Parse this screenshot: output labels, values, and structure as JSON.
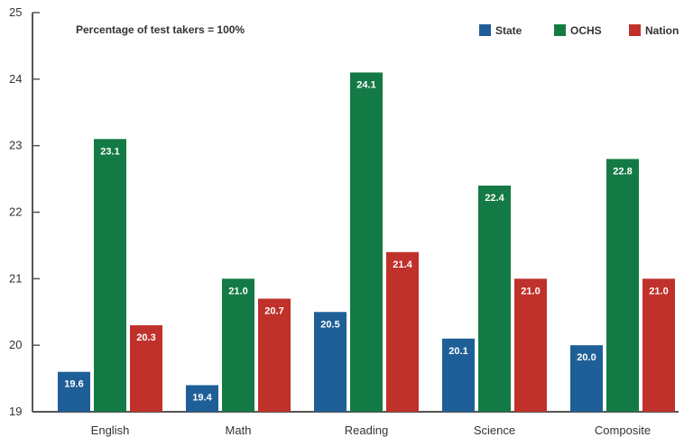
{
  "chart_data": {
    "type": "bar",
    "annotation": "Percentage of test takers = 100%",
    "categories": [
      "English",
      "Math",
      "Reading",
      "Science",
      "Composite"
    ],
    "series": [
      {
        "name": "State",
        "color": "#1f5f97",
        "values": [
          19.6,
          19.4,
          20.5,
          20.1,
          20.0
        ],
        "labels": [
          "19.6",
          "19.4",
          "20.5",
          "20.1",
          "20.0"
        ]
      },
      {
        "name": "OCHS",
        "color": "#147a45",
        "values": [
          23.1,
          21.0,
          24.1,
          22.4,
          22.8
        ],
        "labels": [
          "23.1",
          "21.0",
          "24.1",
          "22.4",
          "22.8"
        ]
      },
      {
        "name": "Nation",
        "color": "#c0312b",
        "values": [
          20.3,
          20.7,
          21.4,
          21.0,
          21.0
        ],
        "labels": [
          "20.3",
          "20.7",
          "21.4",
          "21.0",
          "21.0"
        ]
      }
    ],
    "ylim": [
      19,
      25
    ],
    "yticks": [
      "19",
      "20",
      "21",
      "22",
      "23",
      "24",
      "25"
    ],
    "legend": "top-right",
    "grid": false
  }
}
